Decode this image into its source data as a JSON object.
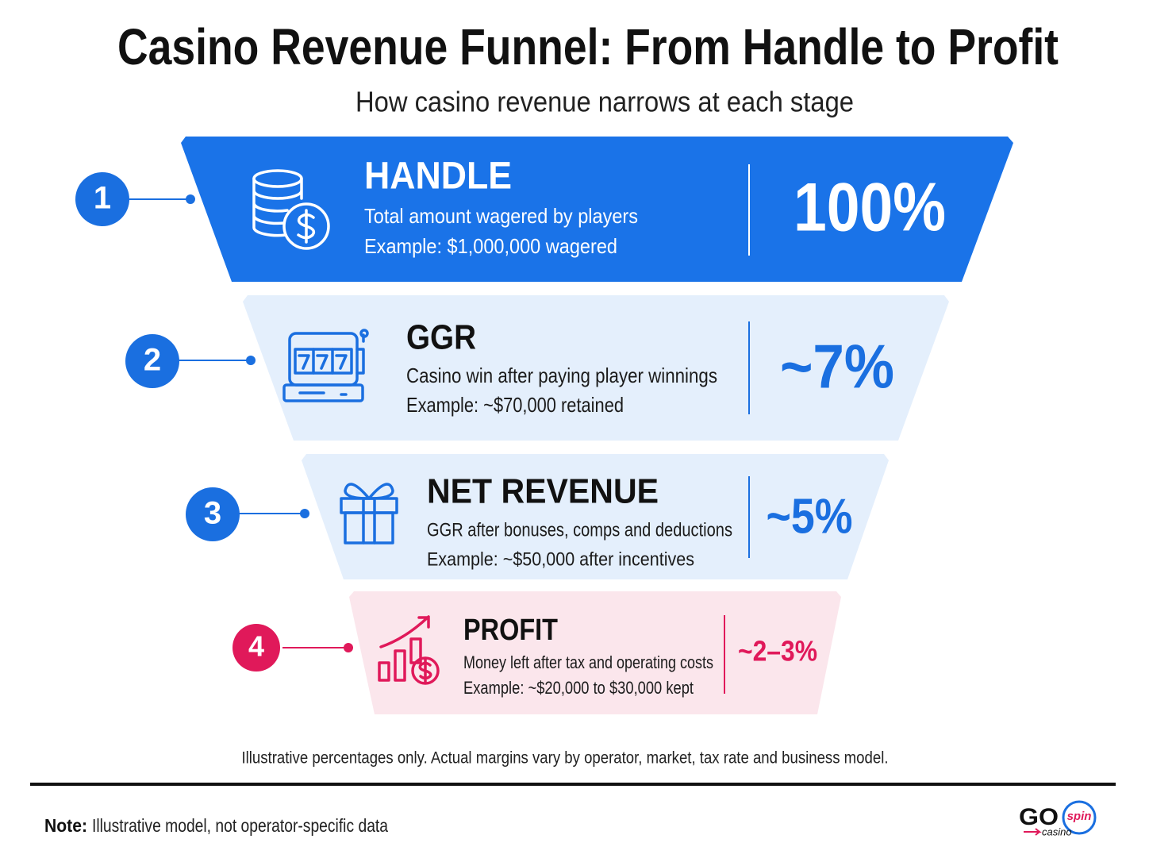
{
  "title": "Casino Revenue Funnel: From Handle to Profit",
  "subtitle": "How casino revenue narrows at each stage",
  "stages": [
    {
      "number": 1,
      "name": "HANDLE",
      "description": "Total amount wagered by players",
      "example": "Example: $1,000,000 wagered",
      "percent": "100%"
    },
    {
      "number": 2,
      "name": "GGR",
      "description": "Casino win after paying player winnings",
      "example": "Example: ~$70,000 retained",
      "percent": "~7%"
    },
    {
      "number": 3,
      "name": "NET REVENUE",
      "description": "GGR after bonuses, comps and deductions",
      "example": "Example: ~$50,000 after incentives",
      "percent": "~5%"
    },
    {
      "number": 4,
      "name": "PROFIT",
      "description": "Money left after tax and operating costs",
      "example": "Example: ~$20,000 to $30,000 kept",
      "percent": "~2–3%"
    }
  ],
  "disclaimer": "Illustrative percentages only. Actual margins vary by operator, market, tax rate and business model.",
  "note": {
    "label": "Note:",
    "text": "Illustrative model, not operator-specific data"
  },
  "logo": {
    "main": "GO",
    "badge": "spin",
    "sub": "casino"
  }
}
